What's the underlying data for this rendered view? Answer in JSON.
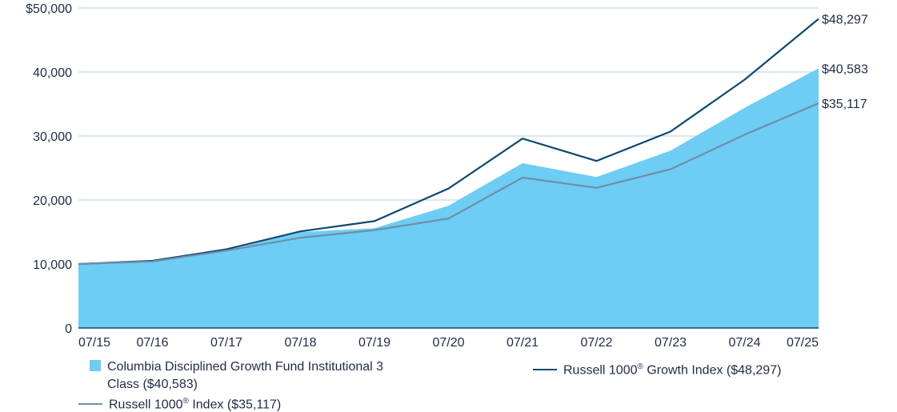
{
  "chart_data": {
    "type": "area",
    "x": [
      "07/15",
      "07/16",
      "07/17",
      "07/18",
      "07/19",
      "07/20",
      "07/21",
      "07/22",
      "07/23",
      "07/24",
      "07/25"
    ],
    "ylim": [
      0,
      50000
    ],
    "yticks": [
      0,
      10000,
      20000,
      30000,
      40000,
      50000
    ],
    "ytick_labels": [
      "0",
      "10,000",
      "20,000",
      "30,000",
      "40,000",
      "$50,000"
    ],
    "grid": true,
    "legend_position": "bottom",
    "series": [
      {
        "name": "Columbia Disciplined Growth Fund Institutional 3 Class ($40,583)",
        "style": "area",
        "color": "#6dcdf4",
        "values": [
          10000,
          10400,
          12100,
          15000,
          15600,
          19100,
          25750,
          23600,
          27700,
          34400,
          40583
        ],
        "end_label": "$40,583"
      },
      {
        "name": "Russell 1000® Growth Index ($48,297)",
        "style": "line",
        "color": "#0b4a6e",
        "values": [
          10000,
          10500,
          12300,
          15100,
          16700,
          21800,
          29600,
          26100,
          30700,
          38800,
          48297
        ],
        "end_label": "$48,297"
      },
      {
        "name": "Russell 1000® Index ($35,117)",
        "style": "line",
        "color": "#6f8ea8",
        "values": [
          10000,
          10400,
          12100,
          14100,
          15300,
          17100,
          23500,
          21900,
          24800,
          30200,
          35117
        ],
        "end_label": "$35,117"
      }
    ]
  },
  "legend": {
    "fund_line1": "Columbia Disciplined Growth Fund Institutional 3",
    "fund_line2": "Class ($40,583)",
    "growth_pre": "Russell 1000",
    "growth_post": " Growth Index ($48,297)",
    "index_pre": "Russell 1000",
    "index_post": " Index ($35,117)",
    "reg": "®"
  }
}
